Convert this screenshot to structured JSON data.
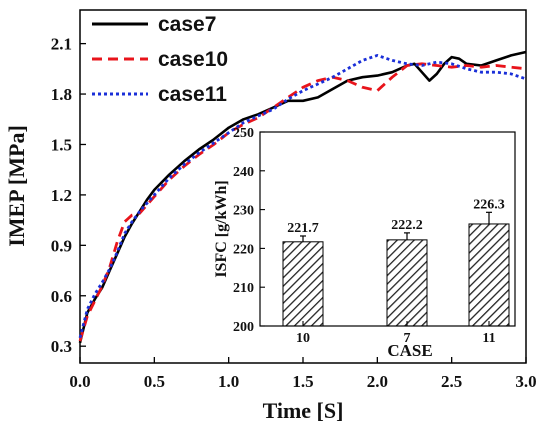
{
  "chart_data": [
    {
      "type": "line",
      "xlabel": "Time [S]",
      "ylabel": "IMEP [MPa]",
      "xlim": [
        0.0,
        3.0
      ],
      "ylim": [
        0.2,
        2.3
      ],
      "xticks": [
        "0.0",
        "0.5",
        "1.0",
        "1.5",
        "2.0",
        "2.5",
        "3.0"
      ],
      "yticks": [
        "0.3",
        "0.6",
        "0.9",
        "1.2",
        "1.5",
        "1.8",
        "2.1"
      ],
      "legend_position": "top-left",
      "series": [
        {
          "name": "case7",
          "color": "#000000",
          "style": "solid",
          "x": [
            0.0,
            0.05,
            0.1,
            0.15,
            0.2,
            0.25,
            0.3,
            0.35,
            0.4,
            0.45,
            0.5,
            0.6,
            0.7,
            0.8,
            0.9,
            1.0,
            1.1,
            1.2,
            1.3,
            1.4,
            1.5,
            1.6,
            1.7,
            1.8,
            1.9,
            2.0,
            2.1,
            2.2,
            2.25,
            2.3,
            2.35,
            2.4,
            2.45,
            2.5,
            2.55,
            2.6,
            2.7,
            2.8,
            2.9,
            3.0
          ],
          "y": [
            0.32,
            0.5,
            0.58,
            0.65,
            0.75,
            0.85,
            0.95,
            1.03,
            1.1,
            1.17,
            1.23,
            1.32,
            1.4,
            1.47,
            1.53,
            1.6,
            1.65,
            1.68,
            1.72,
            1.76,
            1.76,
            1.78,
            1.83,
            1.88,
            1.9,
            1.91,
            1.93,
            1.97,
            1.98,
            1.93,
            1.88,
            1.92,
            1.98,
            2.02,
            2.01,
            1.98,
            1.97,
            2.0,
            2.03,
            2.05
          ]
        },
        {
          "name": "case10",
          "color": "#e8141b",
          "style": "dashed",
          "x": [
            0.0,
            0.05,
            0.1,
            0.15,
            0.2,
            0.25,
            0.3,
            0.35,
            0.4,
            0.45,
            0.5,
            0.6,
            0.7,
            0.8,
            0.9,
            1.0,
            1.1,
            1.2,
            1.3,
            1.4,
            1.5,
            1.6,
            1.7,
            1.8,
            1.9,
            2.0,
            2.1,
            2.2,
            2.3,
            2.4,
            2.5,
            2.6,
            2.7,
            2.8,
            2.9,
            3.0
          ],
          "y": [
            0.33,
            0.48,
            0.57,
            0.66,
            0.77,
            0.92,
            1.04,
            1.08,
            1.09,
            1.14,
            1.19,
            1.29,
            1.37,
            1.44,
            1.5,
            1.57,
            1.62,
            1.66,
            1.72,
            1.78,
            1.84,
            1.88,
            1.9,
            1.88,
            1.84,
            1.82,
            1.9,
            1.97,
            1.98,
            1.97,
            1.96,
            1.97,
            1.96,
            1.97,
            1.96,
            1.95
          ]
        },
        {
          "name": "case11",
          "color": "#1a2fd8",
          "style": "dotted",
          "x": [
            0.0,
            0.05,
            0.1,
            0.15,
            0.2,
            0.25,
            0.3,
            0.35,
            0.4,
            0.45,
            0.5,
            0.6,
            0.7,
            0.8,
            0.9,
            1.0,
            1.1,
            1.2,
            1.3,
            1.4,
            1.5,
            1.6,
            1.7,
            1.8,
            1.9,
            2.0,
            2.1,
            2.2,
            2.3,
            2.4,
            2.5,
            2.6,
            2.7,
            2.8,
            2.9,
            3.0
          ],
          "y": [
            0.35,
            0.52,
            0.61,
            0.68,
            0.76,
            0.86,
            0.97,
            1.04,
            1.1,
            1.15,
            1.2,
            1.3,
            1.38,
            1.45,
            1.51,
            1.57,
            1.63,
            1.67,
            1.71,
            1.77,
            1.82,
            1.86,
            1.9,
            1.95,
            2.0,
            2.03,
            2.0,
            1.98,
            1.97,
            1.99,
            1.98,
            1.95,
            1.93,
            1.93,
            1.92,
            1.89
          ]
        }
      ]
    },
    {
      "type": "bar",
      "xlabel": "CASE",
      "ylabel": "ISFC [g/kWh]",
      "ylim": [
        200,
        250
      ],
      "yticks": [
        "200",
        "210",
        "220",
        "230",
        "240",
        "250"
      ],
      "categories": [
        "10",
        "7",
        "11"
      ],
      "values": [
        221.7,
        222.2,
        226.3
      ],
      "value_labels": [
        "221.7",
        "222.2",
        "226.3"
      ],
      "errors": [
        1.5,
        1.8,
        3.0
      ],
      "fill": "hatched"
    }
  ]
}
